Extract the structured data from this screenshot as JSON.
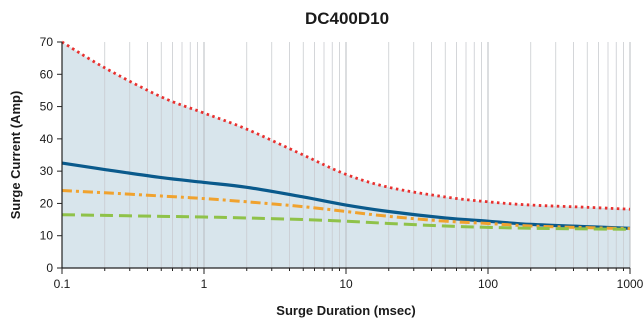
{
  "chart_data": {
    "type": "line",
    "title": "DC400D10",
    "xlabel": "Surge Duration (msec)",
    "ylabel": "Surge Current (Amp)",
    "x_scale": "log",
    "xlim": [
      0.1,
      1000
    ],
    "ylim": [
      0,
      70
    ],
    "x_ticks": [
      "0.1",
      "1",
      "10",
      "100",
      "1000"
    ],
    "y_ticks": [
      "0",
      "10",
      "20",
      "30",
      "40",
      "50",
      "60",
      "70"
    ],
    "grid": true,
    "legend": "none",
    "fill_under": "top-series",
    "series": [
      {
        "style": "dotted",
        "color": "#e8312f",
        "x": [
          0.1,
          0.2,
          0.5,
          1,
          2,
          5,
          10,
          20,
          50,
          100,
          200,
          500,
          1000
        ],
        "y": [
          70,
          62,
          53,
          48,
          43,
          35,
          29,
          25,
          22,
          20.5,
          19.5,
          18.8,
          18.2
        ]
      },
      {
        "style": "solid",
        "color": "#0a5a8c",
        "x": [
          0.1,
          0.2,
          0.5,
          1,
          2,
          5,
          10,
          20,
          50,
          100,
          200,
          500,
          1000
        ],
        "y": [
          32.5,
          30.5,
          28,
          26.5,
          25,
          22,
          19.5,
          17.5,
          15.5,
          14.5,
          13.5,
          12.8,
          12.3
        ]
      },
      {
        "style": "dash-dot",
        "color": "#f0a22e",
        "x": [
          0.1,
          0.2,
          0.5,
          1,
          2,
          5,
          10,
          20,
          50,
          100,
          200,
          500,
          1000
        ],
        "y": [
          24,
          23.3,
          22.3,
          21.5,
          20.5,
          19,
          17.5,
          16,
          14.5,
          13.8,
          13,
          12.5,
          12.2
        ]
      },
      {
        "style": "dashed",
        "color": "#8fc249",
        "x": [
          0.1,
          0.2,
          0.5,
          1,
          2,
          5,
          10,
          20,
          50,
          100,
          200,
          500,
          1000
        ],
        "y": [
          16.5,
          16.3,
          16,
          15.8,
          15.5,
          15,
          14.5,
          13.8,
          13,
          12.6,
          12.3,
          12.1,
          12
        ]
      }
    ]
  }
}
